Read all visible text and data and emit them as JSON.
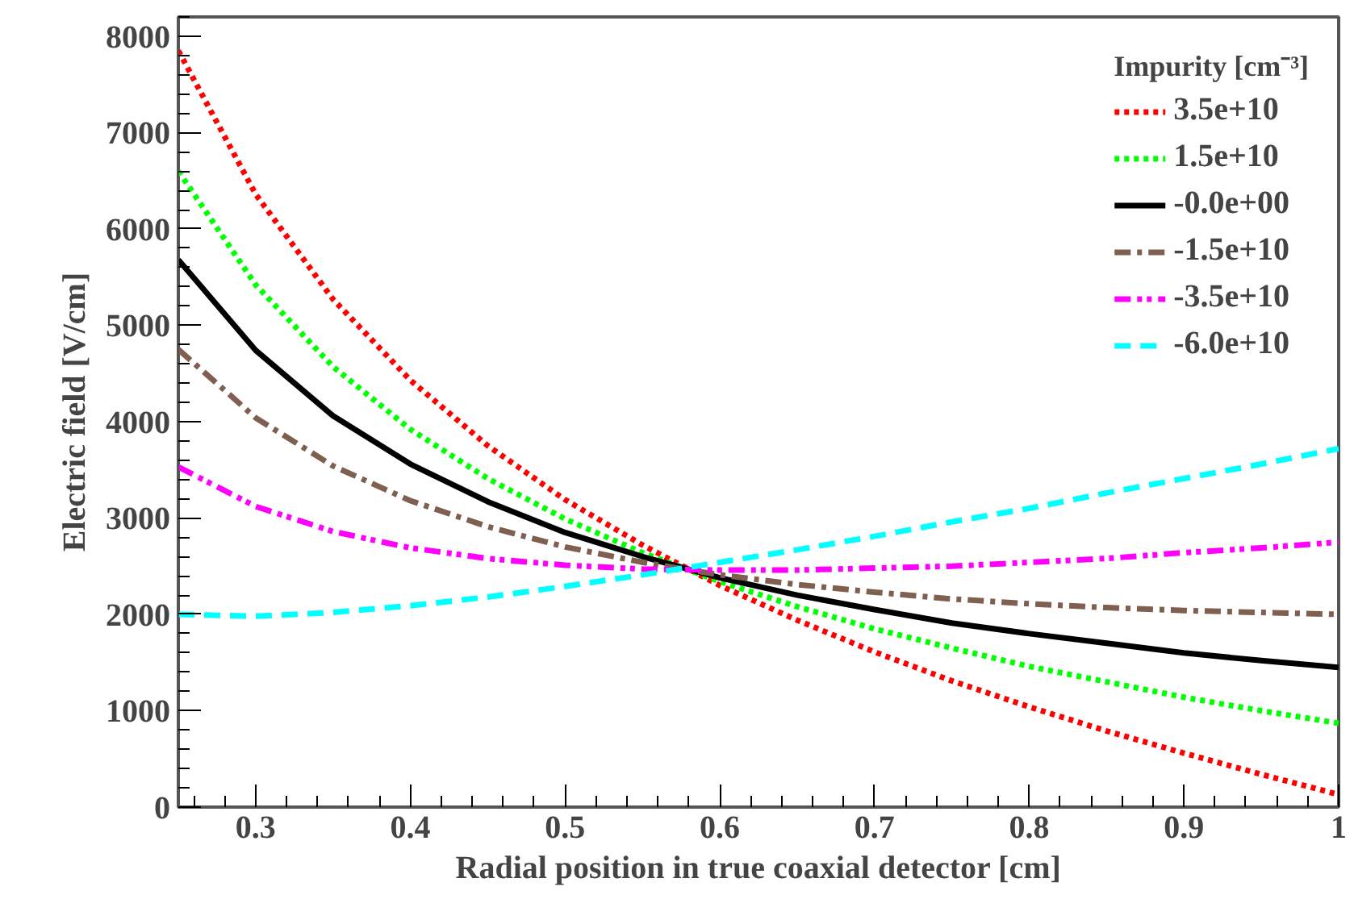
{
  "chart_data": {
    "type": "line",
    "xlabel": "Radial position in true coaxial detector [cm]",
    "ylabel": "Electric field [V/cm]",
    "legend_title": "Impurity [cm⁻³]",
    "x": [
      0.25,
      0.3,
      0.35,
      0.4,
      0.45,
      0.5,
      0.55,
      0.6,
      0.65,
      0.7,
      0.75,
      0.8,
      0.85,
      0.9,
      0.95,
      1.0
    ],
    "series": [
      {
        "name": "3.5e+10",
        "color": "#ff0000",
        "line_style": "dotted",
        "values": [
          7850,
          6360,
          5270,
          4430,
          3750,
          3190,
          2720,
          2300,
          1940,
          1610,
          1310,
          1040,
          790,
          560,
          340,
          130
        ]
      },
      {
        "name": "1.5e+10",
        "color": "#00ff00",
        "line_style": "dotted",
        "values": [
          6600,
          5420,
          4570,
          3920,
          3410,
          2990,
          2640,
          2340,
          2080,
          1850,
          1650,
          1460,
          1300,
          1140,
          1000,
          870
        ]
      },
      {
        "name": "-0.0e+00",
        "color": "#000000",
        "line_style": "solid",
        "values": [
          5680,
          4740,
          4060,
          3560,
          3170,
          2850,
          2600,
          2380,
          2200,
          2050,
          1910,
          1800,
          1700,
          1600,
          1520,
          1450
        ]
      },
      {
        "name": "-1.5e+10",
        "color": "#7f5f4f",
        "line_style": "dashdot",
        "values": [
          4750,
          4040,
          3540,
          3180,
          2910,
          2700,
          2540,
          2410,
          2310,
          2230,
          2160,
          2110,
          2070,
          2040,
          2020,
          2000
        ]
      },
      {
        "name": "-3.5e+10",
        "color": "#ff00ff",
        "line_style": "dashdotdot",
        "values": [
          3530,
          3120,
          2860,
          2690,
          2580,
          2510,
          2470,
          2460,
          2460,
          2480,
          2500,
          2540,
          2580,
          2640,
          2690,
          2750
        ]
      },
      {
        "name": "-6.0e+10",
        "color": "#00ffff",
        "line_style": "dashed",
        "values": [
          2000,
          1980,
          2020,
          2090,
          2180,
          2290,
          2410,
          2540,
          2670,
          2810,
          2960,
          3100,
          3260,
          3410,
          3560,
          3720
        ]
      }
    ],
    "xlim": [
      0.25,
      1.0
    ],
    "ylim": [
      0,
      8200
    ],
    "xticks": [
      0.3,
      0.4,
      0.5,
      0.6,
      0.7,
      0.8,
      0.9,
      {
        "value": 1.0,
        "label": "1"
      }
    ],
    "yticks": [
      0,
      1000,
      2000,
      3000,
      4000,
      5000,
      6000,
      7000,
      8000
    ],
    "grid": false,
    "legend": "top right",
    "marker": "none"
  }
}
